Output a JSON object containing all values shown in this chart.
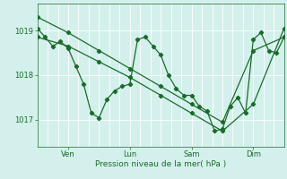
{
  "title": "",
  "xlabel": "Pression niveau de la mer( hPa )",
  "ylabel": "",
  "bg_color": "#d4f0ec",
  "line_color": "#1a6b2a",
  "grid_color": "#ffffff",
  "tick_color": "#1a6b2a",
  "label_color": "#1a6b2a",
  "xlim": [
    0,
    96
  ],
  "ylim": [
    1016.4,
    1019.6
  ],
  "yticks": [
    1017,
    1018,
    1019
  ],
  "xtick_positions": [
    12,
    36,
    60,
    84
  ],
  "xtick_labels": [
    "Ven",
    "Lun",
    "Sam",
    "Dim"
  ],
  "n_vgrid": 24,
  "series1_x": [
    0,
    3,
    6,
    9,
    12,
    15,
    18,
    21,
    24,
    27,
    30,
    33,
    36,
    39,
    42,
    45,
    48,
    51,
    54,
    57,
    60,
    63,
    66,
    69,
    72,
    75,
    78,
    81,
    84,
    87,
    90,
    93,
    96
  ],
  "series1_y": [
    1019.05,
    1018.85,
    1018.65,
    1018.75,
    1018.6,
    1018.2,
    1017.8,
    1017.15,
    1017.05,
    1017.45,
    1017.65,
    1017.75,
    1017.8,
    1018.8,
    1018.85,
    1018.65,
    1018.45,
    1018.0,
    1017.7,
    1017.55,
    1017.55,
    1017.3,
    1017.2,
    1016.75,
    1016.8,
    1017.3,
    1017.5,
    1017.15,
    1018.8,
    1018.95,
    1018.55,
    1018.5,
    1018.85
  ],
  "series2_x": [
    0,
    12,
    24,
    36,
    48,
    60,
    72,
    84,
    96
  ],
  "series2_y": [
    1019.3,
    1018.95,
    1018.55,
    1018.15,
    1017.75,
    1017.35,
    1016.95,
    1018.55,
    1018.85
  ],
  "series3_x": [
    0,
    12,
    24,
    36,
    48,
    60,
    72,
    84,
    96
  ],
  "series3_y": [
    1018.85,
    1018.65,
    1018.3,
    1017.95,
    1017.55,
    1017.15,
    1016.75,
    1017.35,
    1019.05
  ]
}
